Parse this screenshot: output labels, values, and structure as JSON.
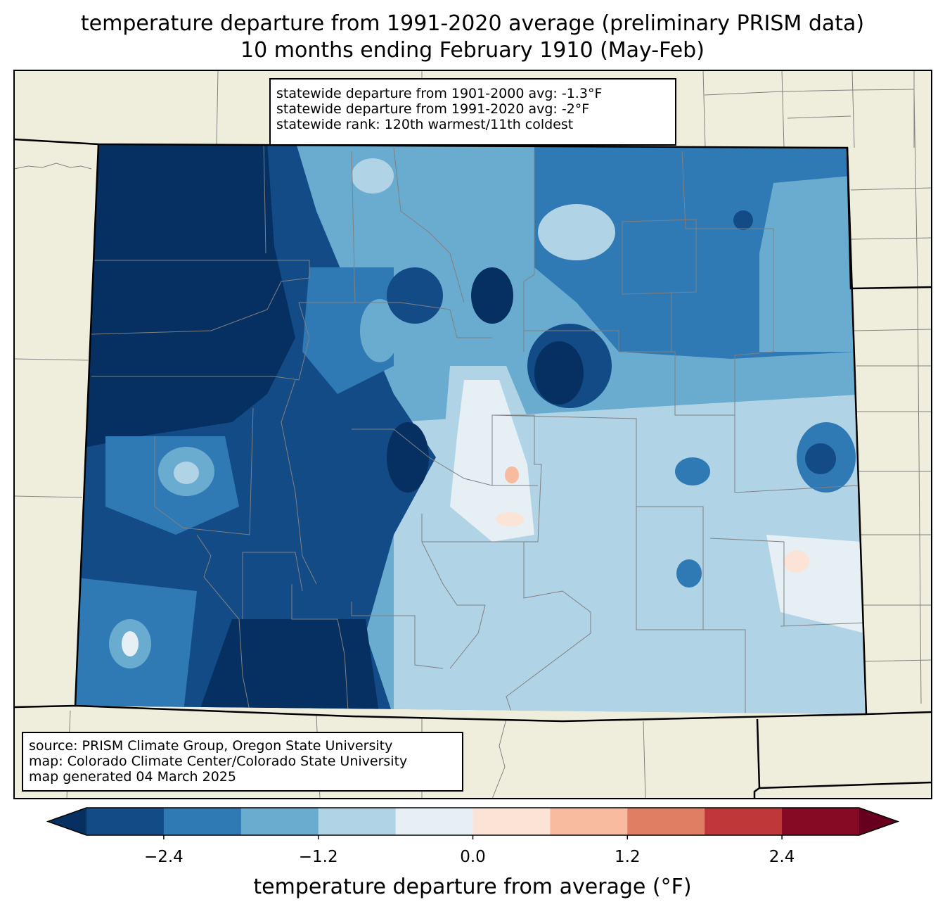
{
  "title": {
    "line1": "temperature departure from 1991-2020 average (preliminary PRISM data)",
    "line2": "10 months ending February 1910 (May-Feb)"
  },
  "stats": {
    "line1": "statewide departure from 1901-2000 avg: -1.3°F",
    "line2": "statewide departure from 1991-2020 avg: -2°F",
    "line3": "statewide rank: 120th warmest/11th coldest"
  },
  "source": {
    "line1": "source: PRISM Climate Group, Oregon State University",
    "line2": "map: Colorado Climate Center/Colorado State University",
    "line3": "map generated 04 March 2025"
  },
  "colorbar": {
    "label": "temperature departure from average (°F)",
    "ticks": [
      "−2.4",
      "−1.2",
      "0.0",
      "1.2",
      "2.4"
    ],
    "tick_values": [
      -2.4,
      -1.2,
      0.0,
      1.2,
      2.4
    ],
    "range": [
      -3.0,
      3.0
    ],
    "step": 0.6,
    "colors": [
      "#053061",
      "#134b87",
      "#2f79b5",
      "#6aabd0",
      "#b0d3e6",
      "#e6eff4",
      "#fbe3d6",
      "#f8bba0",
      "#e07e64",
      "#c0373a",
      "#860a23",
      "#67001f"
    ]
  },
  "map": {
    "background": "#efeedc",
    "border_color": "#808080"
  }
}
